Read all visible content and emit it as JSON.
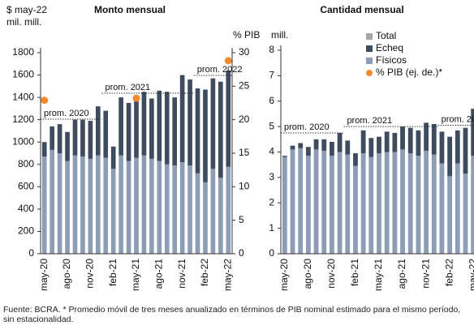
{
  "legend": [
    {
      "name": "Total",
      "color": "#a6a6a6",
      "marker": "square"
    },
    {
      "name": "Echeq",
      "color": "#3f4b5e",
      "marker": "square"
    },
    {
      "name": "Físicos",
      "color": "#8d9db5",
      "marker": "square"
    },
    {
      "name": "% PIB (ej. de.)*",
      "color": "#f28a2e",
      "marker": "dot"
    }
  ],
  "source": "Fuente: BCRA. * Promedio móvil de tres meses anualizado en términos de PIB nominal estimado para el mismo período, sin estacionalidad.",
  "chart_data": [
    {
      "type": "bar",
      "title": "Monto mensual",
      "y_label": [
        "$ may-22",
        "mil. mill."
      ],
      "y2_label": "% PIB",
      "stacked": true,
      "categories": [
        "may-20",
        null,
        null,
        "ago-20",
        null,
        null,
        "nov-20",
        null,
        null,
        "feb-21",
        null,
        null,
        "may-21",
        null,
        null,
        "ago-21",
        null,
        null,
        "nov-21",
        null,
        null,
        "feb-22",
        null,
        null,
        "may-22"
      ],
      "series": [
        {
          "color": "#8d9db5",
          "values": [
            870,
            930,
            900,
            830,
            880,
            870,
            850,
            880,
            860,
            760,
            880,
            830,
            860,
            880,
            850,
            830,
            800,
            790,
            820,
            790,
            720,
            640,
            760,
            680,
            780
          ]
        },
        {
          "color": "#3f4b5e",
          "values": [
            130,
            210,
            260,
            260,
            320,
            330,
            340,
            440,
            420,
            200,
            520,
            520,
            560,
            570,
            540,
            630,
            650,
            610,
            780,
            770,
            760,
            830,
            810,
            860,
            860
          ]
        },
        {
          "color": "#f28a2e",
          "axis": "y2",
          "marker": "dot",
          "values": [
            22.9,
            null,
            null,
            null,
            null,
            null,
            null,
            null,
            null,
            null,
            null,
            null,
            23.2,
            null,
            null,
            null,
            null,
            null,
            null,
            null,
            null,
            null,
            null,
            null,
            28.8
          ]
        }
      ],
      "averages": [
        {
          "label": "prom. 2020",
          "value": 1205,
          "range": [
            0,
            7
          ]
        },
        {
          "label": "prom. 2021",
          "value": 1437,
          "range": [
            8,
            19
          ]
        },
        {
          "label": "prom. 2022",
          "value": 1597,
          "range": [
            20,
            24
          ]
        }
      ],
      "ylim": [
        0,
        1800
      ],
      "yticks": [
        0,
        200,
        400,
        600,
        800,
        1000,
        1200,
        1400,
        1600,
        1800
      ],
      "y2lim": [
        0,
        30
      ],
      "y2ticks": [
        0,
        5,
        10,
        15,
        20,
        25,
        30
      ]
    },
    {
      "type": "bar",
      "title": "Cantidad mensual",
      "y_label": [
        "mill."
      ],
      "stacked": true,
      "categories": [
        "may-20",
        null,
        null,
        "ago-20",
        null,
        null,
        "nov-20",
        null,
        null,
        "feb-21",
        null,
        null,
        "may-21",
        null,
        null,
        "ago-21",
        null,
        null,
        "nov-21",
        null,
        null,
        "feb-22",
        null,
        null,
        "may-22"
      ],
      "series": [
        {
          "color": "#8d9db5",
          "values": [
            3.8,
            4.1,
            4.15,
            3.85,
            4.1,
            4.05,
            3.85,
            4.0,
            3.9,
            3.45,
            3.95,
            3.8,
            3.95,
            4.0,
            4.0,
            4.1,
            3.95,
            3.85,
            4.05,
            3.9,
            3.55,
            3.05,
            3.55,
            3.15,
            3.85
          ]
        },
        {
          "color": "#3f4b5e",
          "values": [
            0.05,
            0.15,
            0.2,
            0.35,
            0.4,
            0.45,
            0.55,
            0.75,
            0.55,
            0.5,
            0.9,
            0.75,
            0.65,
            0.8,
            0.75,
            0.9,
            1.0,
            1.0,
            1.1,
            1.2,
            1.25,
            1.55,
            1.3,
            1.8,
            1.85
          ]
        }
      ],
      "averages": [
        {
          "label": "prom. 2020",
          "value": 4.75,
          "range": [
            0,
            7
          ]
        },
        {
          "label": "prom. 2021",
          "value": 5.0,
          "range": [
            8,
            19
          ]
        },
        {
          "label": "prom. 2022",
          "value": 5.05,
          "range": [
            20,
            24
          ]
        }
      ],
      "ylim": [
        0,
        8
      ],
      "yticks": [
        0,
        1,
        2,
        3,
        4,
        5,
        6,
        7,
        8
      ]
    }
  ]
}
